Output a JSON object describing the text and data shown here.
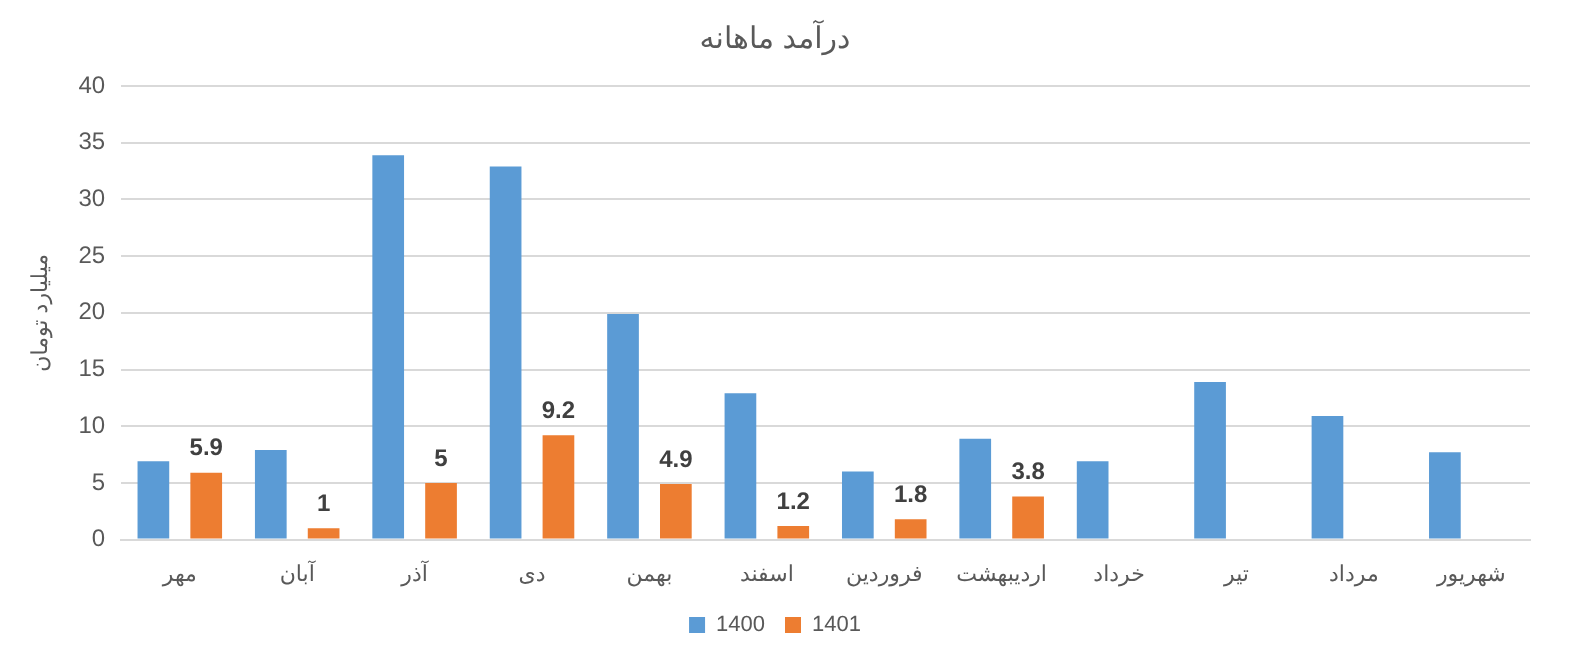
{
  "chart_data": {
    "type": "bar",
    "title": "درآمد ماهانه",
    "ylabel": "میلیارد تومان",
    "categories": [
      "مهر",
      "آبان",
      "آذر",
      "دی",
      "بهمن",
      "اسفند",
      "فروردین",
      "اردیبهشت",
      "خرداد",
      "تیر",
      "مرداد",
      "شهریور"
    ],
    "series": [
      {
        "name": "1400",
        "color": "#5b9bd5",
        "values": [
          6.9,
          7.9,
          33.9,
          32.9,
          19.9,
          12.9,
          6,
          8.9,
          6.9,
          13.9,
          10.9,
          7.7
        ]
      },
      {
        "name": "1401",
        "color": "#ed7d31",
        "values": [
          5.9,
          1,
          5,
          9.2,
          4.9,
          1.2,
          1.8,
          3.8,
          null,
          null,
          null,
          null
        ],
        "value_labels": [
          "5.9",
          "1",
          "5",
          "9.2",
          "4.9",
          "1.2",
          "1.8",
          "3.8",
          null,
          null,
          null,
          null
        ]
      }
    ],
    "ylim": [
      0,
      40
    ],
    "yticks": [
      0,
      5,
      10,
      15,
      20,
      25,
      30,
      35,
      40
    ],
    "grid": "y",
    "legend": "bottom"
  }
}
